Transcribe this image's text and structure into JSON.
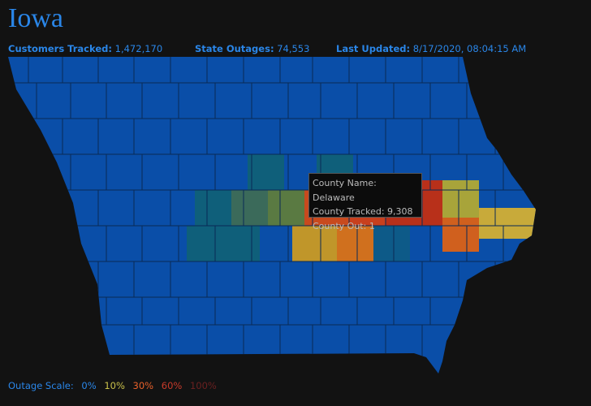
{
  "header": {
    "title": "Iowa",
    "stats": [
      {
        "label": "Customers Tracked:",
        "value": "1,472,170"
      },
      {
        "label": "State Outages:",
        "value": "74,553"
      },
      {
        "label": "Last Updated:",
        "value": "8/17/2020, 08:04:15 AM"
      }
    ]
  },
  "tooltip": {
    "rows": [
      {
        "label": "County Name:",
        "value": "Delaware"
      },
      {
        "label": "County Tracked:",
        "value": "9,308"
      },
      {
        "label": "County Out:",
        "value": "1"
      }
    ]
  },
  "legend": {
    "label": "Outage Scale:",
    "steps": [
      "0%",
      "10%",
      "30%",
      "60%",
      "100%"
    ]
  }
}
